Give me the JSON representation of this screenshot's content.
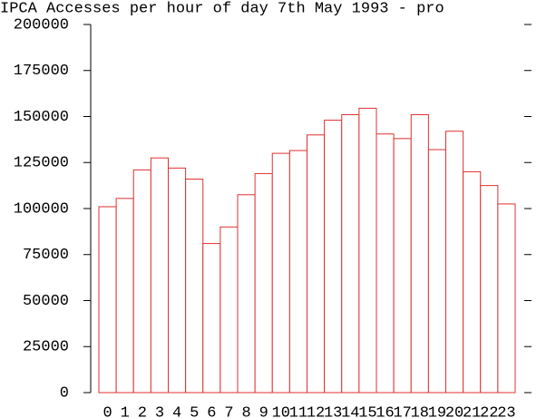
{
  "chart_data": {
    "type": "bar",
    "title": "IPCA Accesses per hour of day 7th May 1993 - pro",
    "categories": [
      "0",
      "1",
      "2",
      "3",
      "4",
      "5",
      "6",
      "7",
      "8",
      "9",
      "10",
      "11",
      "12",
      "13",
      "14",
      "15",
      "16",
      "17",
      "18",
      "19",
      "20",
      "21",
      "22",
      "23"
    ],
    "values": [
      101000,
      105500,
      121000,
      127500,
      122000,
      116000,
      81000,
      90000,
      107500,
      119000,
      130000,
      131500,
      140000,
      148000,
      151000,
      154500,
      140500,
      138000,
      151000,
      132000,
      142000,
      120000,
      112500,
      102500
    ],
    "color": "#e03030",
    "ylim": [
      0,
      200000
    ],
    "yticks": [
      0,
      25000,
      50000,
      75000,
      100000,
      125000,
      150000,
      175000,
      200000
    ]
  }
}
